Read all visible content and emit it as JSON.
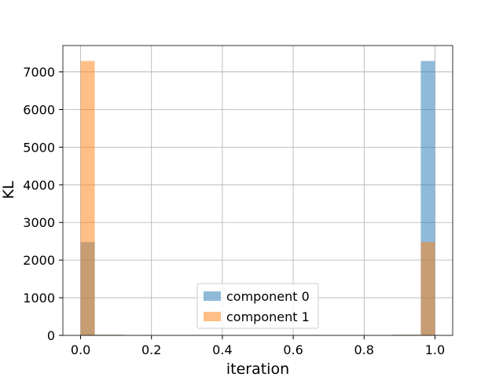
{
  "chart_data": {
    "type": "bar",
    "xlabel": "iteration",
    "ylabel": "KL",
    "xlim": [
      -0.05,
      1.05
    ],
    "ylim": [
      0,
      7700
    ],
    "xticks": [
      0.0,
      0.2,
      0.4,
      0.6,
      0.8,
      1.0
    ],
    "xtick_labels": [
      "0.0",
      "0.2",
      "0.4",
      "0.6",
      "0.8",
      "1.0"
    ],
    "yticks": [
      0,
      1000,
      2000,
      3000,
      4000,
      5000,
      6000,
      7000
    ],
    "ytick_labels": [
      "0",
      "1000",
      "2000",
      "3000",
      "4000",
      "5000",
      "6000",
      "7000"
    ],
    "grid": true,
    "legend_position": "bottom-center",
    "bins": [
      [
        0.0,
        0.04
      ],
      [
        0.04,
        0.12
      ],
      [
        0.12,
        0.88
      ],
      [
        0.88,
        0.96
      ],
      [
        0.96,
        1.0
      ]
    ],
    "series": [
      {
        "name": "component 0",
        "color": "#1f77b4",
        "alpha": 0.5,
        "values": [
          2480,
          15,
          0,
          15,
          7290
        ]
      },
      {
        "name": "component 1",
        "color": "#ff7f0e",
        "alpha": 0.5,
        "values": [
          7290,
          15,
          0,
          15,
          2480
        ]
      }
    ]
  }
}
